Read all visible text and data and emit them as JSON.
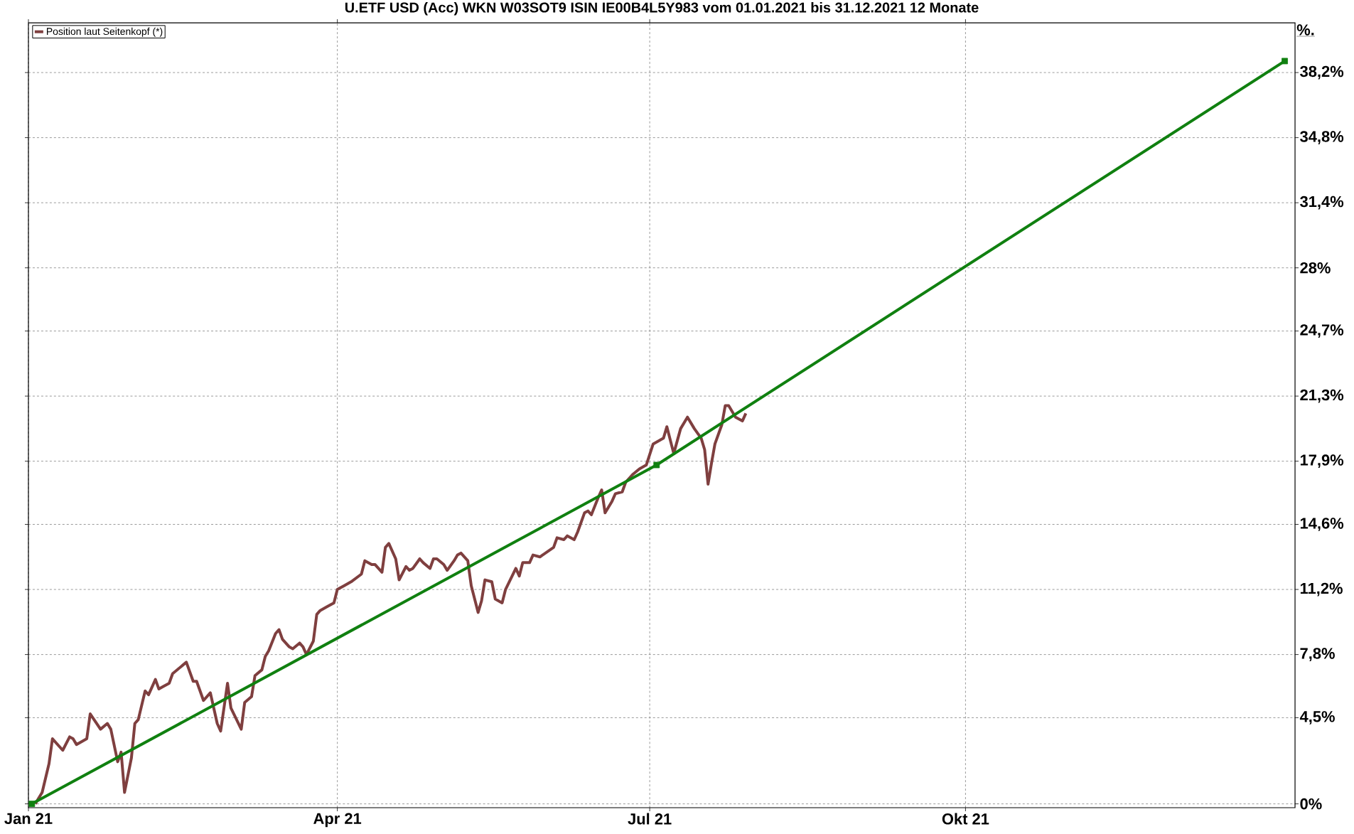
{
  "chart_data": {
    "type": "line",
    "title": "U.ETF USD (Acc) WKN W03SOT9 ISIN IE00B4L5Y983 vom 01.01.2021 bis 31.12.2021 12 Monate",
    "ylabel": "%.",
    "grid": true,
    "legend": "top left",
    "line_style": "solid",
    "xlim": [
      "2021-01-01",
      "2022-01-05"
    ],
    "xticks": [
      {
        "value": "2021-01-01",
        "label": "Jan 21"
      },
      {
        "value": "2021-04-01",
        "label": "Apr 21"
      },
      {
        "value": "2021-07-01",
        "label": "Jul 21"
      },
      {
        "value": "2021-10-01",
        "label": "Okt 21"
      }
    ],
    "ylim": [
      -0.2,
      40.8
    ],
    "yticks": [
      {
        "value": 0,
        "label": "0%"
      },
      {
        "value": 4.5,
        "label": "4,5%"
      },
      {
        "value": 7.8,
        "label": "7,8%"
      },
      {
        "value": 11.2,
        "label": "11,2%"
      },
      {
        "value": 14.6,
        "label": "14,6%"
      },
      {
        "value": 17.9,
        "label": "17,9%"
      },
      {
        "value": 21.3,
        "label": "21,3%"
      },
      {
        "value": 24.7,
        "label": "24,7%"
      },
      {
        "value": 28,
        "label": "28%"
      },
      {
        "value": 31.4,
        "label": "31,4%"
      },
      {
        "value": 34.8,
        "label": "34,8%"
      },
      {
        "value": 38.2,
        "label": "38,2%"
      }
    ],
    "series": [
      {
        "name": "Position laut Seitenkopf (*)",
        "color": "#7f3f3f",
        "marker": "none",
        "x": [
          "2021-01-03",
          "2021-01-05",
          "2021-01-07",
          "2021-01-08",
          "2021-01-11",
          "2021-01-13",
          "2021-01-14",
          "2021-01-15",
          "2021-01-18",
          "2021-01-19",
          "2021-01-22",
          "2021-01-24",
          "2021-01-25",
          "2021-01-27",
          "2021-01-28",
          "2021-01-29",
          "2021-01-31",
          "2021-02-01",
          "2021-02-02",
          "2021-02-04",
          "2021-02-05",
          "2021-02-07",
          "2021-02-08",
          "2021-02-09",
          "2021-02-11",
          "2021-02-12",
          "2021-02-14",
          "2021-02-16",
          "2021-02-18",
          "2021-02-19",
          "2021-02-21",
          "2021-02-23",
          "2021-02-25",
          "2021-02-26",
          "2021-02-28",
          "2021-03-01",
          "2021-03-04",
          "2021-03-05",
          "2021-03-07",
          "2021-03-08",
          "2021-03-10",
          "2021-03-11",
          "2021-03-12",
          "2021-03-14",
          "2021-03-15",
          "2021-03-16",
          "2021-03-18",
          "2021-03-19",
          "2021-03-21",
          "2021-03-22",
          "2021-03-23",
          "2021-03-25",
          "2021-03-26",
          "2021-03-27",
          "2021-03-29",
          "2021-03-31",
          "2021-04-01",
          "2021-04-03",
          "2021-04-05",
          "2021-04-08",
          "2021-04-09",
          "2021-04-11",
          "2021-04-12",
          "2021-04-14",
          "2021-04-15",
          "2021-04-16",
          "2021-04-18",
          "2021-04-19",
          "2021-04-21",
          "2021-04-22",
          "2021-04-23",
          "2021-04-25",
          "2021-04-26",
          "2021-04-28",
          "2021-04-29",
          "2021-04-30",
          "2021-05-02",
          "2021-05-03",
          "2021-05-05",
          "2021-05-06",
          "2021-05-07",
          "2021-05-09",
          "2021-05-10",
          "2021-05-12",
          "2021-05-13",
          "2021-05-14",
          "2021-05-16",
          "2021-05-17",
          "2021-05-19",
          "2021-05-20",
          "2021-05-23",
          "2021-05-24",
          "2021-05-25",
          "2021-05-27",
          "2021-05-28",
          "2021-05-30",
          "2021-06-03",
          "2021-06-04",
          "2021-06-06",
          "2021-06-07",
          "2021-06-09",
          "2021-06-10",
          "2021-06-12",
          "2021-06-13",
          "2021-06-14",
          "2021-06-16",
          "2021-06-17",
          "2021-06-18",
          "2021-06-20",
          "2021-06-21",
          "2021-06-23",
          "2021-06-24",
          "2021-06-26",
          "2021-06-28",
          "2021-06-30",
          "2021-07-02",
          "2021-07-05",
          "2021-07-06",
          "2021-07-08",
          "2021-07-10",
          "2021-07-12",
          "2021-07-14",
          "2021-07-16",
          "2021-07-17",
          "2021-07-18",
          "2021-07-19",
          "2021-07-20",
          "2021-07-22",
          "2021-07-23",
          "2021-07-24",
          "2021-07-26",
          "2021-07-28",
          "2021-07-29"
        ],
        "values": [
          0.0,
          0.6,
          2.1,
          3.4,
          2.8,
          3.5,
          3.4,
          3.1,
          3.4,
          4.7,
          3.9,
          4.2,
          3.9,
          2.2,
          2.7,
          0.6,
          2.4,
          4.2,
          4.4,
          5.9,
          5.7,
          6.5,
          6.0,
          6.1,
          6.3,
          6.8,
          7.1,
          7.4,
          6.4,
          6.4,
          5.4,
          5.8,
          4.2,
          3.8,
          6.3,
          5.0,
          3.9,
          5.3,
          5.6,
          6.7,
          7.0,
          7.7,
          8.0,
          8.9,
          9.1,
          8.6,
          8.2,
          8.1,
          8.4,
          8.2,
          7.8,
          8.5,
          9.9,
          10.1,
          10.3,
          10.5,
          11.2,
          11.4,
          11.6,
          12.0,
          12.7,
          12.5,
          12.5,
          12.1,
          13.4,
          13.6,
          12.8,
          11.7,
          12.4,
          12.2,
          12.3,
          12.8,
          12.6,
          12.3,
          12.8,
          12.8,
          12.5,
          12.2,
          12.7,
          13.0,
          13.1,
          12.7,
          11.4,
          10.0,
          10.6,
          11.7,
          11.6,
          10.7,
          10.5,
          11.2,
          12.3,
          11.9,
          12.6,
          12.6,
          13.0,
          12.9,
          13.4,
          13.9,
          13.8,
          14.0,
          13.8,
          14.2,
          15.2,
          15.3,
          15.1,
          16.0,
          16.4,
          15.2,
          15.8,
          16.2,
          16.3,
          16.8,
          17.2,
          17.5,
          17.7,
          18.8,
          19.1,
          19.7,
          18.3,
          19.6,
          20.2,
          19.6,
          19.1,
          18.5,
          16.7,
          17.8,
          18.8,
          19.8,
          20.8,
          20.8,
          20.2,
          20.0,
          20.4
        ]
      },
      {
        "color": "#108010",
        "marker": "square",
        "x": [
          "2021-01-02",
          "2021-07-03",
          "2022-01-02"
        ],
        "values": [
          0.0,
          17.7,
          38.8
        ]
      }
    ]
  }
}
